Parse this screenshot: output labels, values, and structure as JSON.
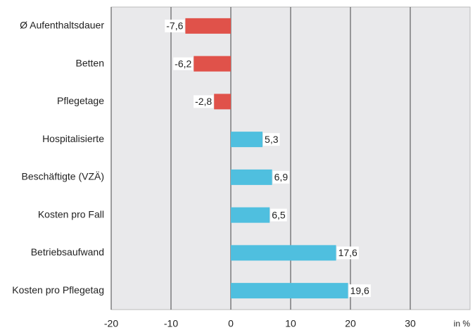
{
  "chart_data": {
    "type": "barh",
    "categories": [
      "Ø Aufenthaltsdauer",
      "Betten",
      "Pflegetage",
      "Hospitalisierte",
      "Beschäftigte (VZÄ)",
      "Kosten pro Fall",
      "Betriebsaufwand",
      "Kosten pro Pflegetag"
    ],
    "values": [
      -7.6,
      -6.2,
      -2.8,
      5.3,
      6.9,
      6.5,
      17.6,
      19.6
    ],
    "value_labels": [
      "-7,6",
      "-6,2",
      "-2,8",
      "5,3",
      "6,9",
      "6,5",
      "17,6",
      "19,6"
    ],
    "negative_color": "#e0524a",
    "positive_color": "#4fbfdf",
    "xlim": [
      -20,
      40
    ],
    "xticks": [
      -20,
      -10,
      0,
      10,
      20,
      30
    ],
    "x_label": "in %",
    "grid": true
  }
}
